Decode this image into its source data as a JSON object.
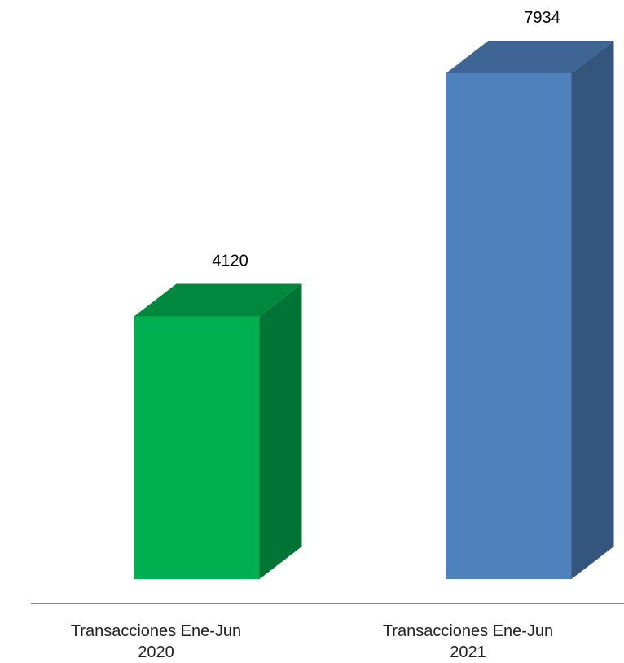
{
  "chart_data": {
    "type": "bar3d",
    "categories": [
      "Transacciones Ene-Jun 2020",
      "Transacciones Ene-Jun 2021"
    ],
    "values": [
      4120,
      7934
    ],
    "colors": [
      "#00b050",
      "#4f81bd"
    ]
  }
}
